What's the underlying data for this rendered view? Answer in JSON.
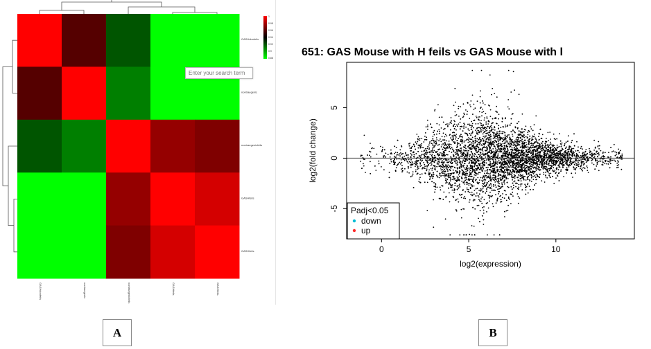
{
  "search": {
    "placeholder": "Enter your search term"
  },
  "panels": {
    "left_label": "A",
    "right_label": "B"
  },
  "chart_data": [
    {
      "type": "heatmap",
      "title": "",
      "row_labels": [
        "GASHdonfeils",
        "nontraegenic",
        "nontraegenicfeils",
        "GASHfeils",
        "GASHfeils"
      ],
      "col_labels": [
        "GASHdonfeils",
        "nontraegenic",
        "nontraegenicfeils",
        "GASHfeils",
        "GASHfeils"
      ],
      "values": [
        [
          1.0,
          0.96,
          0.92,
          0.88,
          0.88
        ],
        [
          0.96,
          1.0,
          0.91,
          0.87,
          0.87
        ],
        [
          0.92,
          0.91,
          1.0,
          0.975,
          0.97
        ],
        [
          0.88,
          0.87,
          0.975,
          1.0,
          0.99
        ],
        [
          0.88,
          0.87,
          0.97,
          0.99,
          1.0
        ]
      ],
      "color_scale": {
        "min": 0.88,
        "max": 1,
        "colors": [
          "#00ff00",
          "#000000",
          "#ff0000"
        ]
      },
      "legend_ticks": [
        "1",
        "0.98",
        "0.96",
        "0.94",
        "0.92",
        "0.9",
        "0.88"
      ],
      "dendrogram": true
    },
    {
      "type": "scatter",
      "title": "651: GAS Mouse with H feils vs GAS Mouse with l",
      "xlabel": "log2(expression)",
      "ylabel": "log2(fold change)",
      "xlim": [
        -2,
        14.5
      ],
      "ylim": [
        -8,
        9.5
      ],
      "xticks": [
        0,
        5,
        10
      ],
      "yticks": [
        -5,
        0,
        5
      ],
      "hline": 0,
      "legend": {
        "position": "bottom-left",
        "title": "Padj<0.05",
        "entries": [
          {
            "label": "down",
            "color": "#00bcd4"
          },
          {
            "label": "up",
            "color": "#ff2a2a"
          }
        ]
      },
      "point_color": "#000000",
      "n_points": 5200
    }
  ]
}
